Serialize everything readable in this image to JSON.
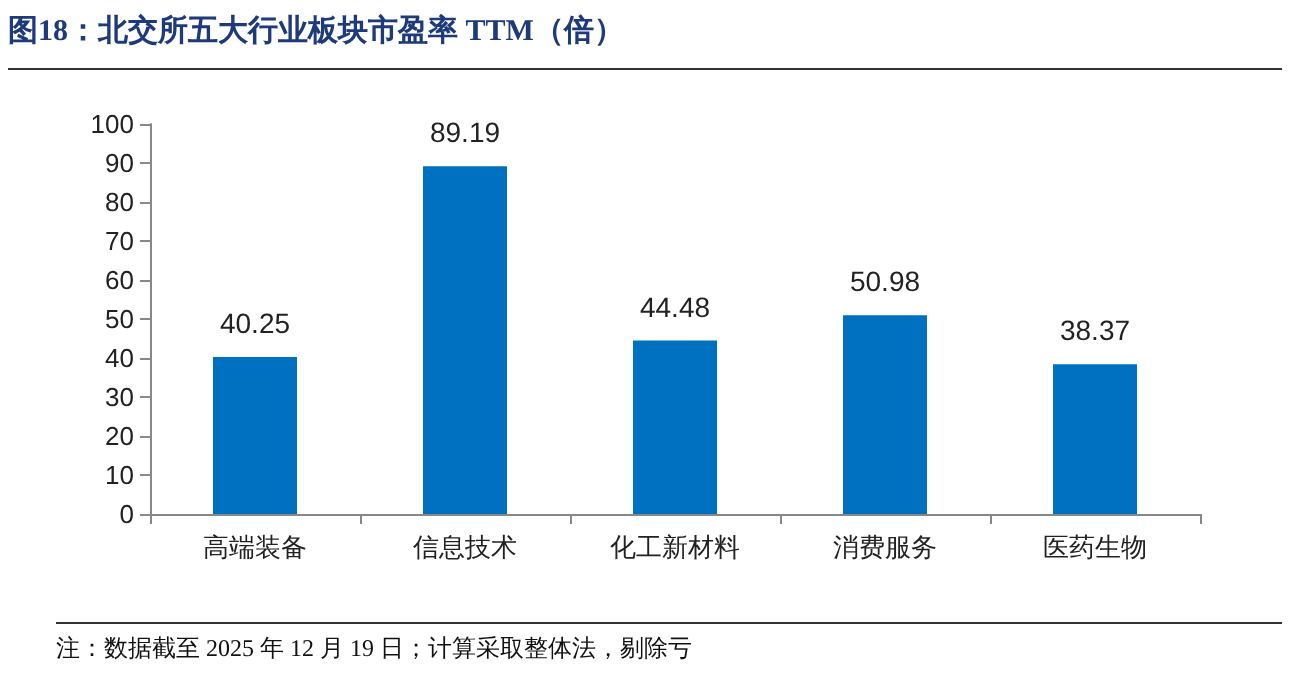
{
  "chart_data": {
    "type": "bar",
    "title": "图18：北交所五大行业板块市盈率 TTM（倍）",
    "categories": [
      "高端装备",
      "信息技术",
      "化工新材料",
      "消费服务",
      "医药生物"
    ],
    "values": [
      40.25,
      89.19,
      44.48,
      50.98,
      38.37
    ],
    "color": "#0070c0",
    "ylim": [
      0,
      100
    ],
    "yticks": [
      0,
      10,
      20,
      30,
      40,
      50,
      60,
      70,
      80,
      90,
      100
    ],
    "data_labels": true,
    "grid": false,
    "annotations": [
      "注：数据截至 2025 年 12 月 19 日；计算采取整体法，剔除亏"
    ]
  }
}
